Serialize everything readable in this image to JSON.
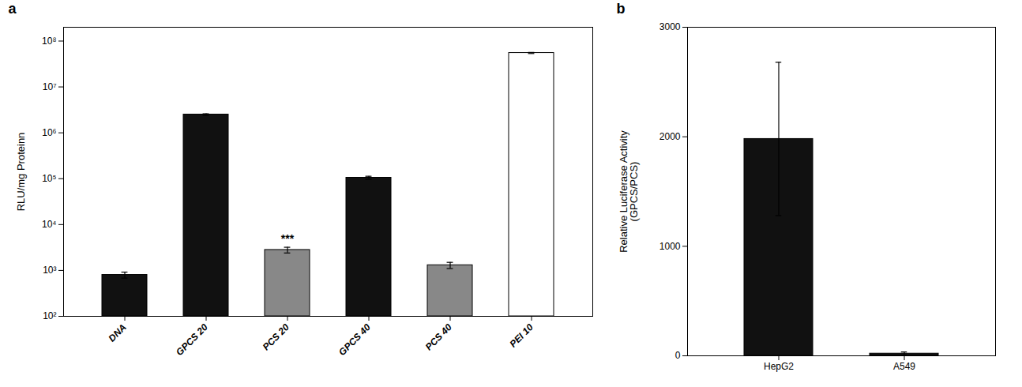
{
  "chart_data": [
    {
      "type": "bar",
      "title": "a",
      "categories": [
        "DNA",
        "GPCS 20",
        "PCS 20",
        "GPCS 40",
        "PCS 40",
        "PEI 10"
      ],
      "values": [
        800,
        2500000,
        2800,
        105000,
        1300,
        55000000
      ],
      "errors": [
        120,
        100000,
        400,
        8000,
        200,
        1500000
      ],
      "colors": [
        "#111111",
        "#111111",
        "#888888",
        "#111111",
        "#888888",
        "white"
      ],
      "ylabel": "RLU/mg Proteinn",
      "log": "y",
      "ylim": [
        100,
        200000000
      ],
      "yticks": [
        {
          "value": 100,
          "label": "10²"
        },
        {
          "value": 1000,
          "label": "10³"
        },
        {
          "value": 10000,
          "label": "10⁴"
        },
        {
          "value": 100000,
          "label": "10⁵"
        },
        {
          "value": 1000000,
          "label": "10⁶"
        },
        {
          "value": 10000000,
          "label": "10⁷"
        },
        {
          "value": 100000000,
          "label": "10⁸"
        }
      ],
      "grid": false,
      "annotations": [
        {
          "text": "***",
          "category": "PCS 20"
        }
      ]
    },
    {
      "type": "bar",
      "title": "b",
      "categories": [
        "HepG2",
        "A549"
      ],
      "values": [
        1980,
        20
      ],
      "errors": [
        700,
        15
      ],
      "colors": [
        "#111111",
        "#111111"
      ],
      "ylabel": "Relative Luciferase Activity\n(GPCS/PCS)",
      "ylim": [
        0,
        3000
      ],
      "yticks": [
        0,
        1000,
        2000,
        3000
      ],
      "grid": false
    }
  ]
}
